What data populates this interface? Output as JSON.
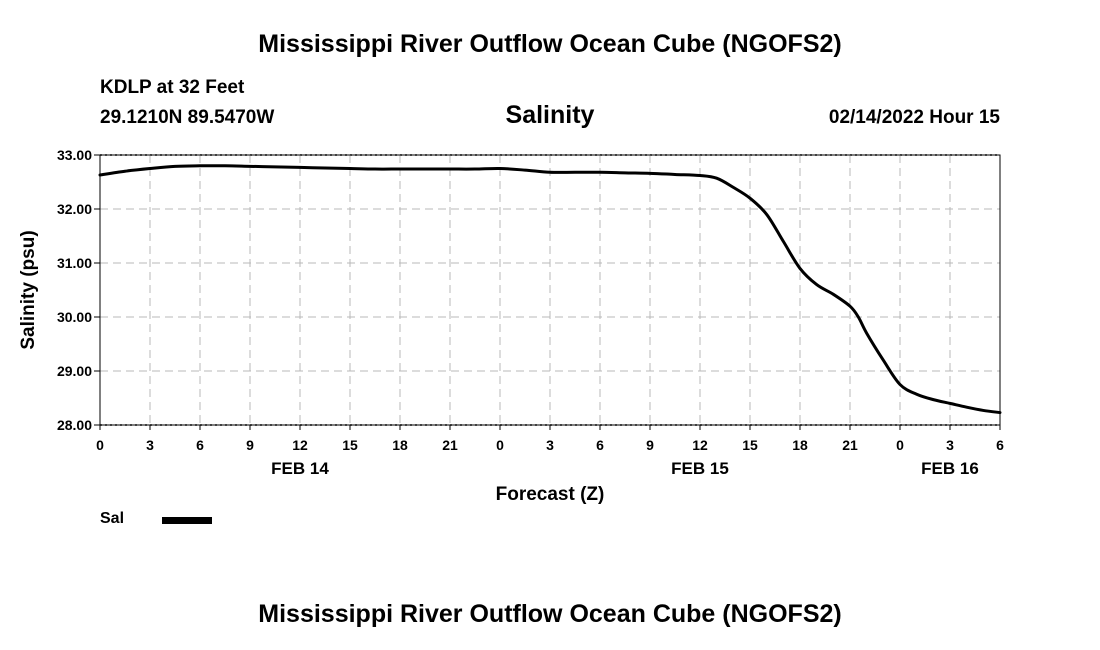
{
  "page": {
    "title": "Mississippi River Outflow Ocean Cube (NGOFS2)",
    "station": "KDLP at 32 Feet",
    "coords": "29.1210N  89.5470W",
    "datetime": "02/14/2022 Hour 15",
    "footer_title": "Mississippi River Outflow Ocean Cube (NGOFS2)"
  },
  "chart_data": {
    "type": "line",
    "title": "Salinity",
    "xlabel": "Forecast (Z)",
    "ylabel": "Salinity (psu)",
    "xlim": [
      0,
      54
    ],
    "ylim": [
      28.0,
      33.0
    ],
    "x_tick_labels": [
      "0",
      "3",
      "6",
      "9",
      "12",
      "15",
      "18",
      "21",
      "0",
      "3",
      "6",
      "9",
      "12",
      "15",
      "18",
      "21",
      "0",
      "3",
      "6"
    ],
    "y_tick_labels": [
      "28.00",
      "29.00",
      "30.00",
      "31.00",
      "32.00",
      "33.00"
    ],
    "date_labels": [
      {
        "label": "FEB 14",
        "x": 12
      },
      {
        "label": "FEB 15",
        "x": 36
      },
      {
        "label": "FEB 16",
        "x": 51
      }
    ],
    "grid": true,
    "legend": {
      "position": "bottom-left"
    },
    "series": [
      {
        "name": "Sal",
        "color": "#000000",
        "x": [
          0,
          1.5,
          3,
          4.5,
          6,
          7.5,
          9,
          10.5,
          12,
          13.5,
          15,
          16.5,
          18,
          19.5,
          21,
          22.5,
          24,
          25.5,
          27,
          28.5,
          30,
          31.5,
          33,
          34.5,
          36,
          37,
          38,
          39,
          40,
          41,
          42,
          43,
          44,
          45,
          45.5,
          46,
          47,
          48,
          49,
          50,
          51,
          52,
          53,
          54
        ],
        "values": [
          32.63,
          32.7,
          32.75,
          32.79,
          32.8,
          32.8,
          32.79,
          32.78,
          32.77,
          32.76,
          32.75,
          32.74,
          32.74,
          32.74,
          32.74,
          32.74,
          32.75,
          32.72,
          32.68,
          32.68,
          32.68,
          32.67,
          32.66,
          32.64,
          32.62,
          32.57,
          32.4,
          32.2,
          31.9,
          31.4,
          30.9,
          30.6,
          30.42,
          30.2,
          30.0,
          29.7,
          29.2,
          28.75,
          28.57,
          28.47,
          28.4,
          28.33,
          28.27,
          28.23
        ]
      }
    ]
  }
}
